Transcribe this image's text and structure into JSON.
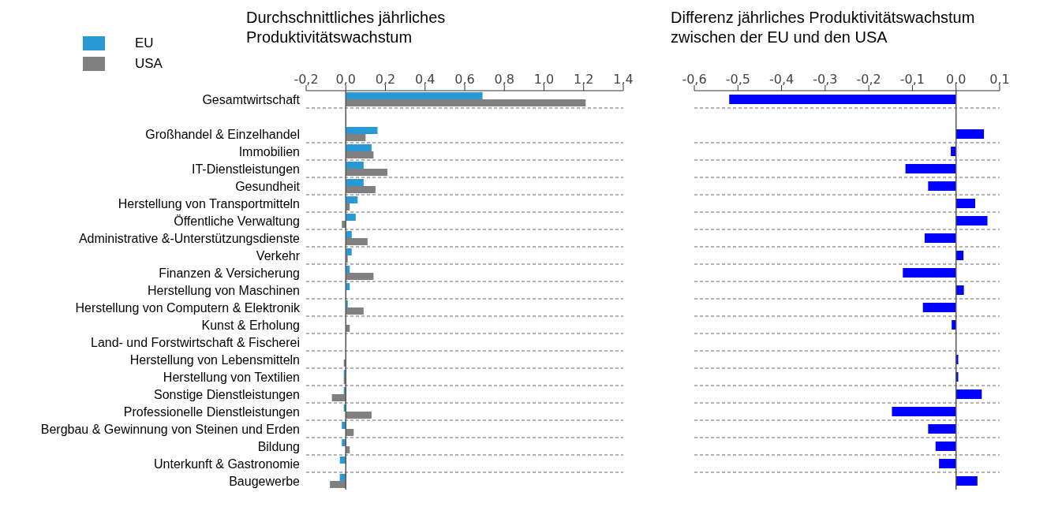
{
  "chart_data": [
    {
      "type": "bar",
      "orientation": "horizontal",
      "title": "Durchschnittliches jährliches Produktivitätswachstum",
      "categories": [
        "Gesamtwirtschaft",
        null,
        "Großhandel & Einzelhandel",
        "Immobilien",
        "IT-Dienstleistungen",
        "Gesundheit",
        "Herstellung von Transportmitteln",
        "Öffentliche Verwaltung",
        "Administrative &-Unterstützungsdienste",
        "Verkehr",
        "Finanzen & Versicherung",
        "Herstellung von Maschinen",
        "Herstellung von Computern & Elektronik",
        "Kunst & Erholung",
        "Land- und Forstwirtschaft & Fischerei",
        "Herstellung von Lebensmitteln",
        "Herstellung von Textilien",
        "Sonstige Dienstleistungen",
        "Professionelle Dienstleistungen",
        "Bergbau & Gewinnung von Steinen und Erden",
        "Bildung",
        "Unterkunft & Gastronomie",
        "Baugewerbe"
      ],
      "series": [
        {
          "name": "EU",
          "color": "#2899d4",
          "values": [
            0.69,
            null,
            0.16,
            0.13,
            0.09,
            0.09,
            0.06,
            0.05,
            0.03,
            0.03,
            0.02,
            0.02,
            0.01,
            0.0,
            null,
            0.0,
            -0.01,
            -0.01,
            -0.01,
            -0.02,
            -0.02,
            -0.03,
            -0.03
          ]
        },
        {
          "name": "USA",
          "color": "#808080",
          "values": [
            1.21,
            null,
            0.1,
            0.14,
            0.21,
            0.15,
            0.02,
            -0.02,
            0.11,
            0.01,
            0.14,
            0.0,
            0.09,
            0.02,
            null,
            -0.01,
            -0.01,
            -0.07,
            0.13,
            0.04,
            0.02,
            0.0,
            -0.08
          ]
        }
      ],
      "xlim": [
        -0.2,
        1.4
      ],
      "xticks": [
        {
          "value": -0.2,
          "label": "-0,2"
        },
        {
          "value": 0,
          "label": "0,0"
        },
        {
          "value": 0.2,
          "label": "0,2"
        },
        {
          "value": 0.4,
          "label": "0,4"
        },
        {
          "value": 0.6,
          "label": "0,6"
        },
        {
          "value": 0.8,
          "label": "0,8"
        },
        {
          "value": 1,
          "label": "1,0"
        },
        {
          "value": 1.2,
          "label": "1,2"
        },
        {
          "value": 1.4,
          "label": "1,4"
        }
      ],
      "ref_lines": [
        {
          "axis": "x",
          "value": 0,
          "color": "#555555"
        }
      ],
      "grid": "y",
      "legend": "top left"
    },
    {
      "type": "bar",
      "orientation": "horizontal",
      "title": "Differenz jährliches Produktivitätswachstum zwischen der EU und den USA",
      "categories": [
        null,
        null,
        null,
        null,
        null,
        null,
        null,
        null,
        null,
        null,
        null,
        null,
        null,
        null,
        null,
        null,
        null,
        null,
        null,
        null,
        null,
        null,
        null
      ],
      "values": [
        -0.52,
        null,
        0.064,
        -0.012,
        -0.116,
        -0.064,
        0.044,
        0.072,
        -0.072,
        0.017,
        -0.122,
        0.018,
        -0.076,
        -0.01,
        null,
        0.005,
        0.005,
        0.059,
        -0.147,
        -0.064,
        -0.047,
        -0.039,
        0.049
      ],
      "color": "#0000ff",
      "xlim": [
        -0.6,
        0.1
      ],
      "xticks": [
        {
          "value": -0.6,
          "label": "-0,6"
        },
        {
          "value": -0.5,
          "label": "-0,5"
        },
        {
          "value": -0.4,
          "label": "-0,4"
        },
        {
          "value": -0.3,
          "label": "-0,3"
        },
        {
          "value": -0.2,
          "label": "-0,2"
        },
        {
          "value": -0.1,
          "label": "-0,1"
        },
        {
          "value": 0,
          "label": "0,0"
        },
        {
          "value": 0.1,
          "label": "0,1"
        }
      ],
      "ref_lines": [
        {
          "axis": "x",
          "value": 0,
          "color": "#555555"
        }
      ],
      "grid": "y",
      "tick_labels": "x"
    }
  ]
}
